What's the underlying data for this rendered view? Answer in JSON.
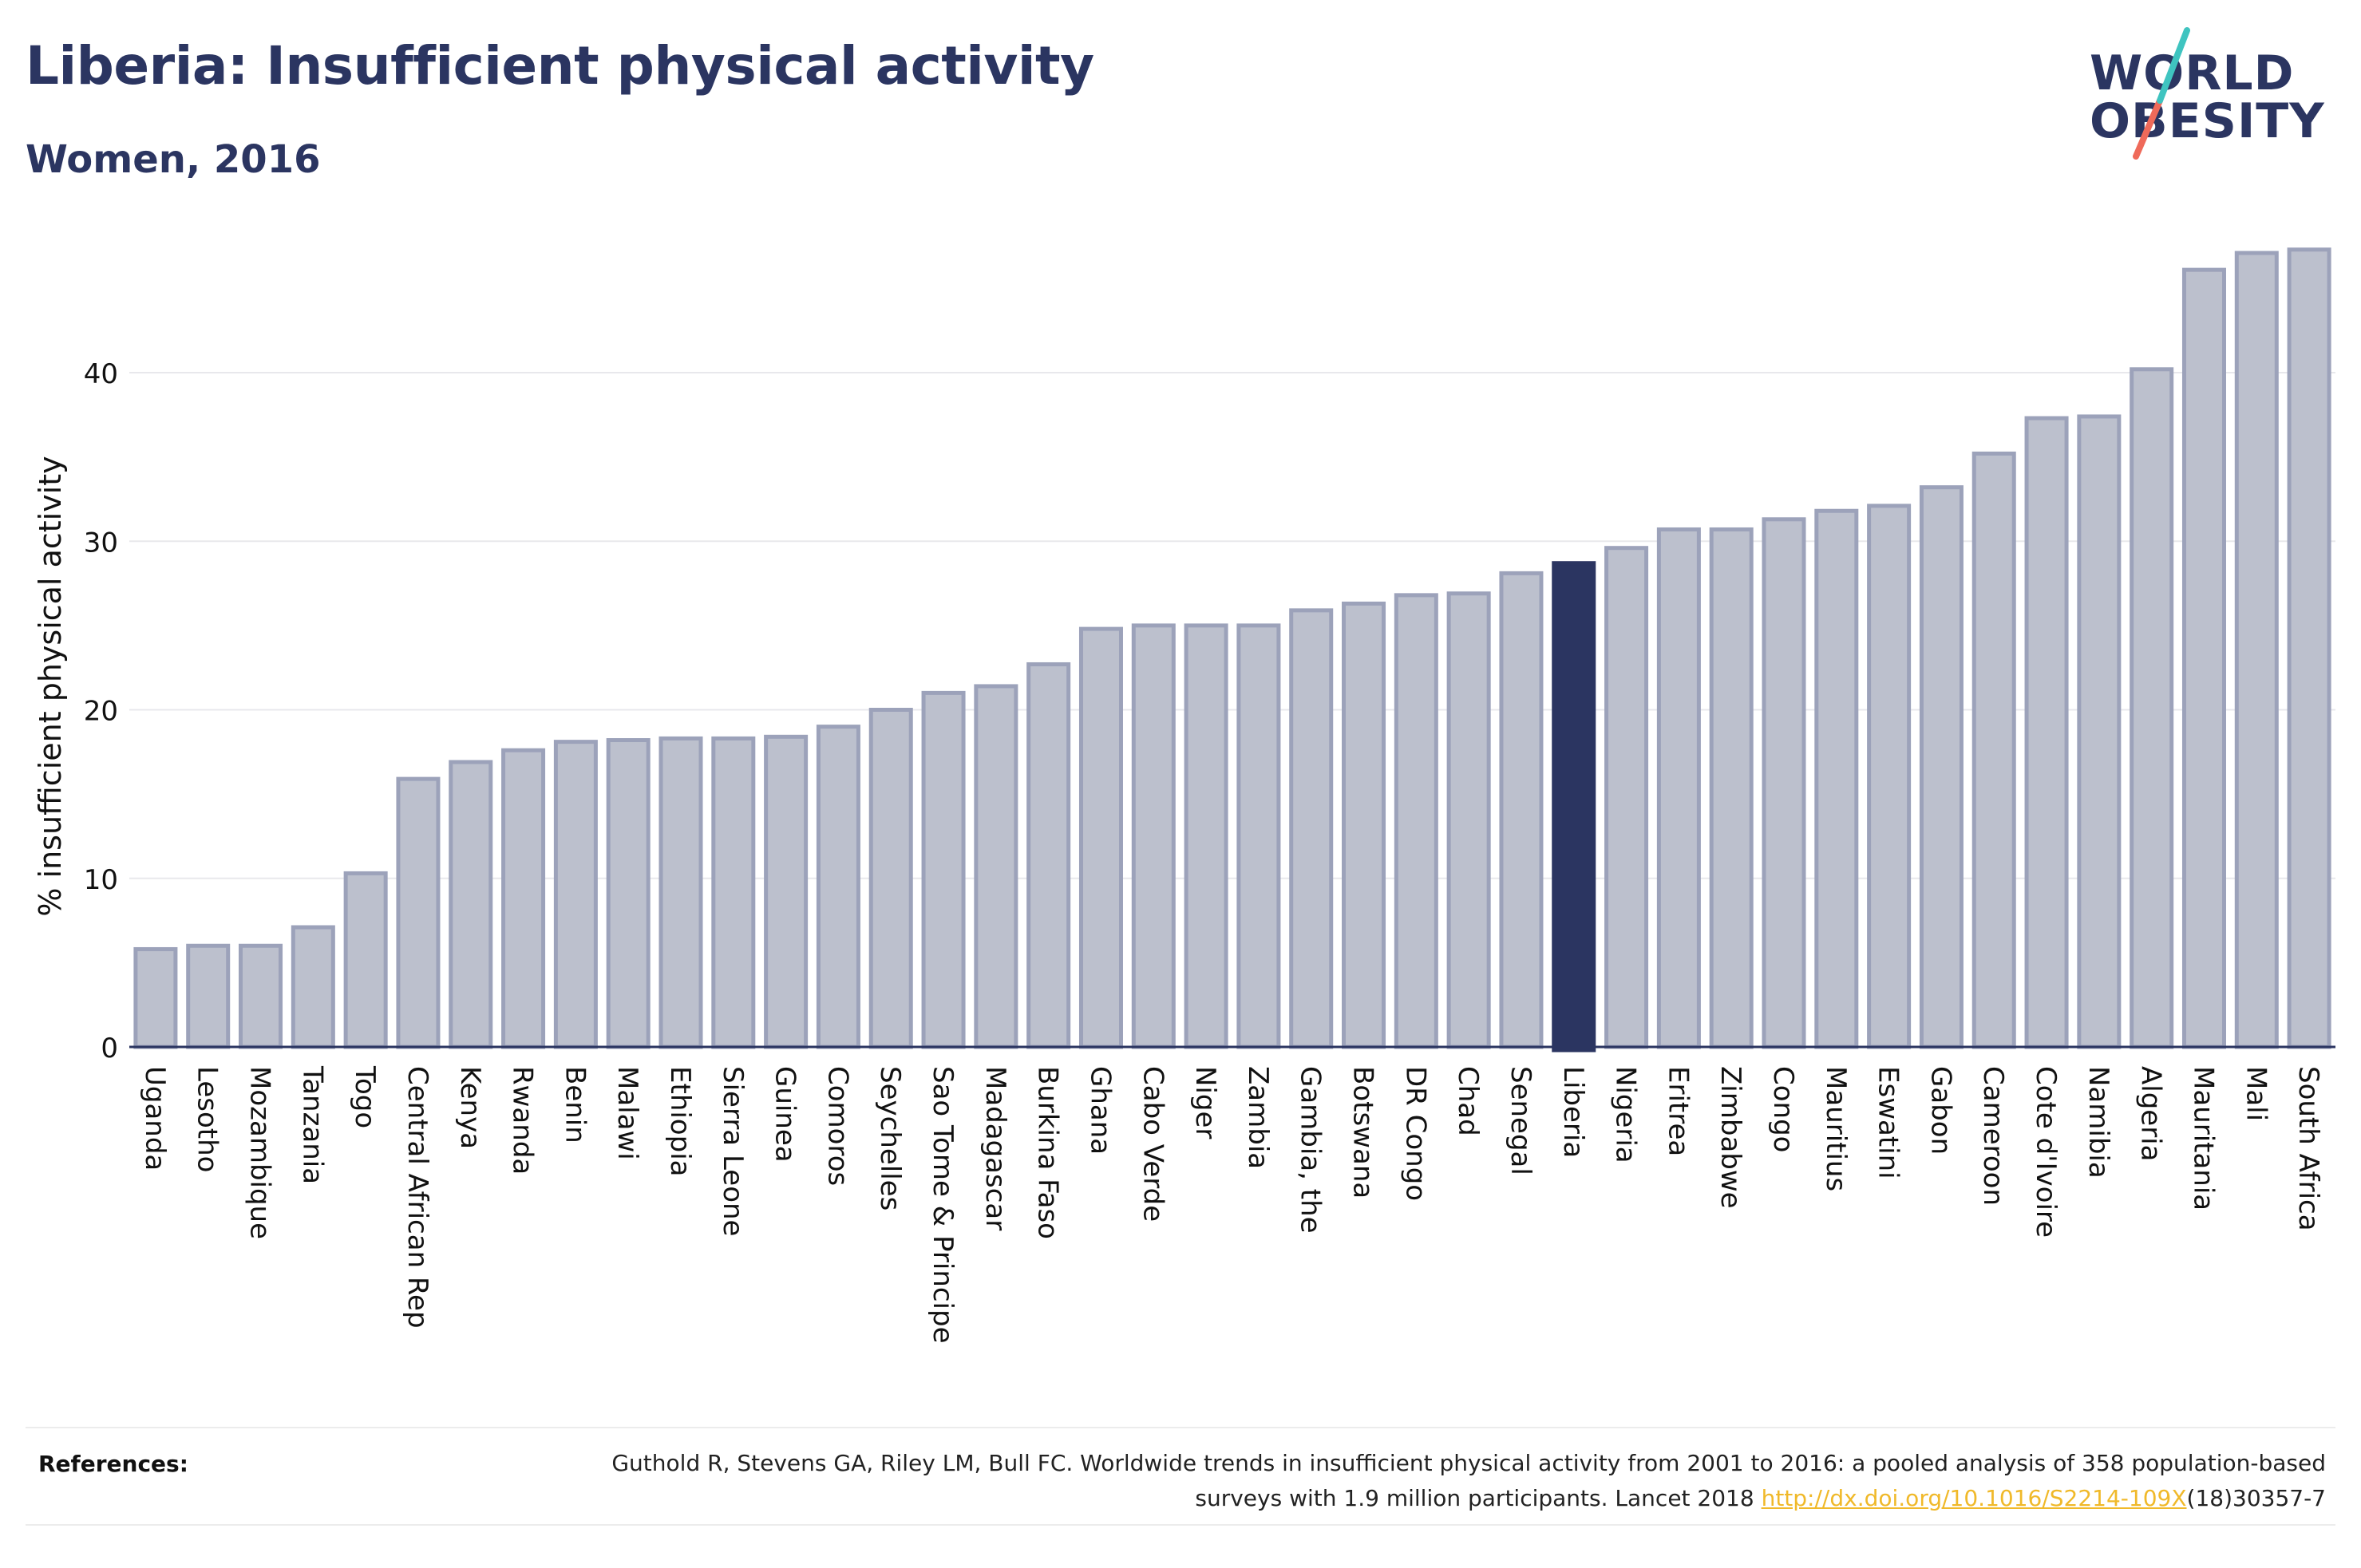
{
  "header": {
    "title": "Liberia: Insufficient physical activity",
    "subtitle": "Women, 2016"
  },
  "logo": {
    "line1": "WORLD",
    "line2": "OBESITY",
    "accent_teal": "#3fc4c0",
    "accent_coral": "#ef6a5a"
  },
  "chart_data": {
    "type": "bar",
    "ylabel": "% insufficient physical activity",
    "xlabel": "",
    "ylim": [
      0,
      48
    ],
    "yticks": [
      0,
      10,
      20,
      30,
      40
    ],
    "grid": true,
    "highlight": "Liberia",
    "colors": {
      "bar": "#bcc0cd",
      "bar_stroke": "#9ca2ba",
      "highlight": "#2b3561",
      "grid": "#e8e8ec",
      "axis": "#2b3561"
    },
    "categories": [
      "Uganda",
      "Lesotho",
      "Mozambique",
      "Tanzania",
      "Togo",
      "Central African Rep",
      "Kenya",
      "Rwanda",
      "Benin",
      "Malawi",
      "Ethiopia",
      "Sierra Leone",
      "Guinea",
      "Comoros",
      "Seychelles",
      "Sao Tome & Principe",
      "Madagascar",
      "Burkina Faso",
      "Ghana",
      "Cabo Verde",
      "Niger",
      "Zambia",
      "Gambia, the",
      "Botswana",
      "DR Congo",
      "Chad",
      "Senegal",
      "Liberia",
      "Nigeria",
      "Eritrea",
      "Zimbabwe",
      "Congo",
      "Mauritius",
      "Eswatini",
      "Gabon",
      "Cameroon",
      "Cote d'Ivoire",
      "Namibia",
      "Algeria",
      "Mauritania",
      "Mali",
      "South Africa"
    ],
    "values": [
      5.8,
      6.0,
      6.0,
      7.1,
      10.3,
      15.9,
      16.9,
      17.6,
      18.1,
      18.2,
      18.3,
      18.3,
      18.4,
      19.0,
      20.0,
      21.0,
      21.4,
      22.7,
      24.8,
      25.0,
      25.0,
      25.0,
      25.9,
      26.3,
      26.8,
      26.9,
      28.1,
      28.7,
      29.6,
      30.7,
      30.7,
      31.3,
      31.8,
      32.1,
      33.2,
      35.2,
      37.3,
      37.4,
      40.2,
      46.1,
      47.1,
      47.3
    ]
  },
  "references": {
    "label": "References:",
    "text_before": "Guthold R, Stevens GA, Riley LM, Bull FC. Worldwide trends in insufficient physical activity from 2001 to 2016: a pooled analysis of 358 population-based surveys with 1.9 million participants. Lancet 2018 ",
    "link": "http://dx.doi.org/10.1016/S2214-109X",
    "text_after": "(18)30357-7"
  }
}
